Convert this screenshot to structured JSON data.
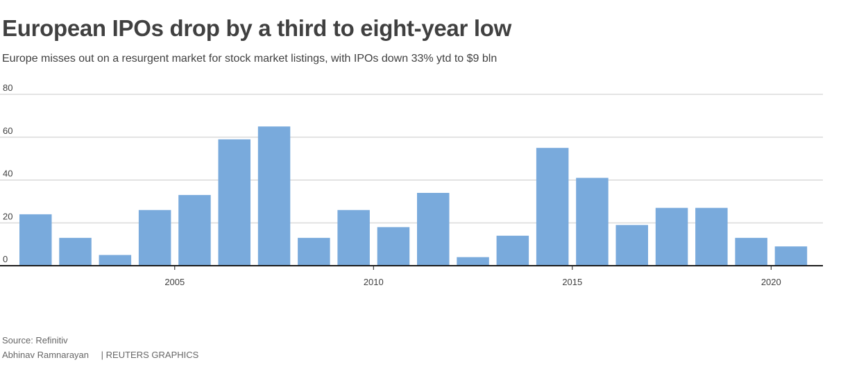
{
  "title": "European IPOs drop by a third to eight-year low",
  "subtitle": "Europe misses out on a resurgent market for stock market listings, with IPOs down 33% ytd to $9 bln",
  "source": "Source: Refinitiv",
  "author": "Abhinav Ramnarayan",
  "credit": "REUTERS GRAPHICS",
  "colors": {
    "bar": "#79aadc",
    "grid": "#c8c8c8",
    "axis": "#1a1a1a",
    "text": "#404040"
  },
  "chart_data": {
    "type": "bar",
    "title": "European IPOs drop by a third to eight-year low",
    "xlabel": "",
    "ylabel": "",
    "ylim": [
      0,
      80
    ],
    "yticks": [
      0,
      20,
      40,
      60,
      80
    ],
    "xticks": [
      2005,
      2010,
      2015,
      2020
    ],
    "categories": [
      2001,
      2002,
      2003,
      2004,
      2005,
      2006,
      2007,
      2008,
      2009,
      2010,
      2011,
      2012,
      2013,
      2014,
      2015,
      2016,
      2017,
      2018,
      2019,
      2020
    ],
    "values": [
      24,
      13,
      5,
      26,
      33,
      59,
      65,
      13,
      26,
      18,
      34,
      4,
      14,
      55,
      41,
      19,
      27,
      27,
      13,
      9
    ],
    "grid": true
  }
}
